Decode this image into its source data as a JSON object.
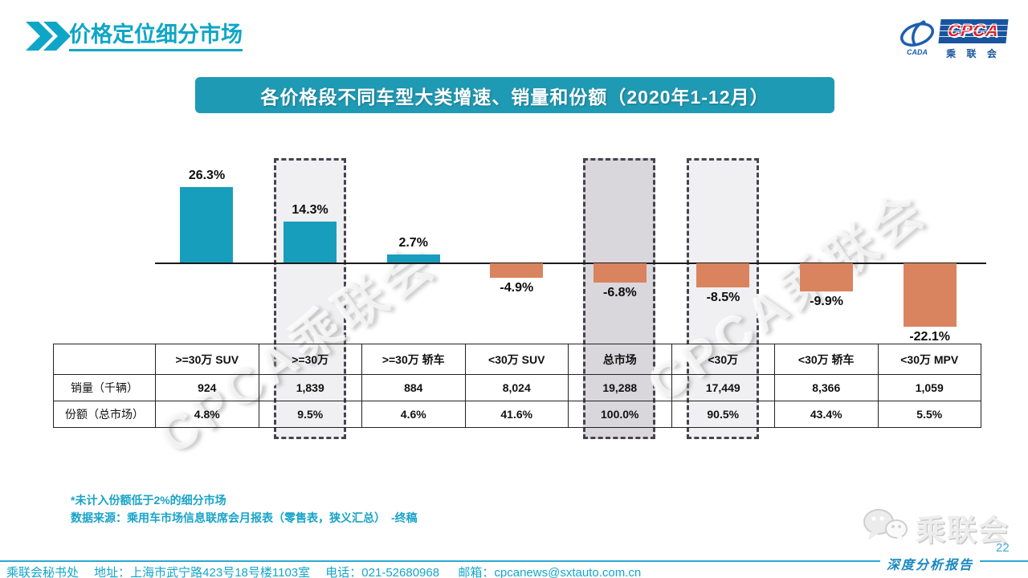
{
  "header": {
    "title": "价格定位细分市场"
  },
  "logo": {
    "cpca": "CPCA",
    "cada": "CADA",
    "cn": "乘 联 会"
  },
  "banner": {
    "title": "各价格段不同车型大类增速、销量和份额（2020年1-12月）"
  },
  "watermark": {
    "text": "CPCA乘联会"
  },
  "chart_data": {
    "type": "bar",
    "title": "各价格段不同车型大类增速、销量和份额（2020年1-12月）",
    "unit": "%",
    "categories": [
      ">=30万 SUV",
      ">=30万",
      ">=30万 轿车",
      "<30万 SUV",
      "总市场",
      "<30万",
      "<30万 轿车",
      "<30万 MPV"
    ],
    "values": [
      26.3,
      14.3,
      2.7,
      -4.9,
      -6.8,
      -8.5,
      -9.9,
      -22.1
    ],
    "value_labels": [
      "26.3%",
      "14.3%",
      "2.7%",
      "-4.9%",
      "-6.8%",
      "-8.5%",
      "-9.9%",
      "-22.1%"
    ],
    "positive_color": "#189EBD",
    "negative_color": "#D9845F",
    "highlights": [
      {
        "index": 1,
        "fill": "#F0EFF1"
      },
      {
        "index": 4,
        "fill": "#D9D7DC"
      },
      {
        "index": 5,
        "fill": "#F0EFF1"
      }
    ],
    "axis": {
      "zero_line": true,
      "ylim": [
        -25,
        30
      ],
      "gridlines": false,
      "legend": "none"
    },
    "table": {
      "row_headers": [
        "销量（千辆）",
        "份额（总市场）"
      ],
      "rows": [
        [
          "924",
          "1,839",
          "884",
          "8,024",
          "19,288",
          "17,449",
          "8,366",
          "1,059"
        ],
        [
          "4.8%",
          "9.5%",
          "4.6%",
          "41.6%",
          "100.0%",
          "90.5%",
          "43.4%",
          "5.5%"
        ]
      ]
    }
  },
  "notes": {
    "line1": "*未计入份额低于2%的细分市场",
    "line2": "数据来源：乘用车市场信息联席会月报表（零售表，狭义汇总）　-终稿"
  },
  "footer": {
    "contact_prefix": "乘联会秘书处　 地址：上海市武宁路423号18号楼1103室　 电话：021-52680968 　 邮箱：",
    "email": "cpcanews@sxtauto.com.cn",
    "page_number": "22",
    "report_badge": "深度分析报告",
    "wechat_brand": "乘联会"
  }
}
